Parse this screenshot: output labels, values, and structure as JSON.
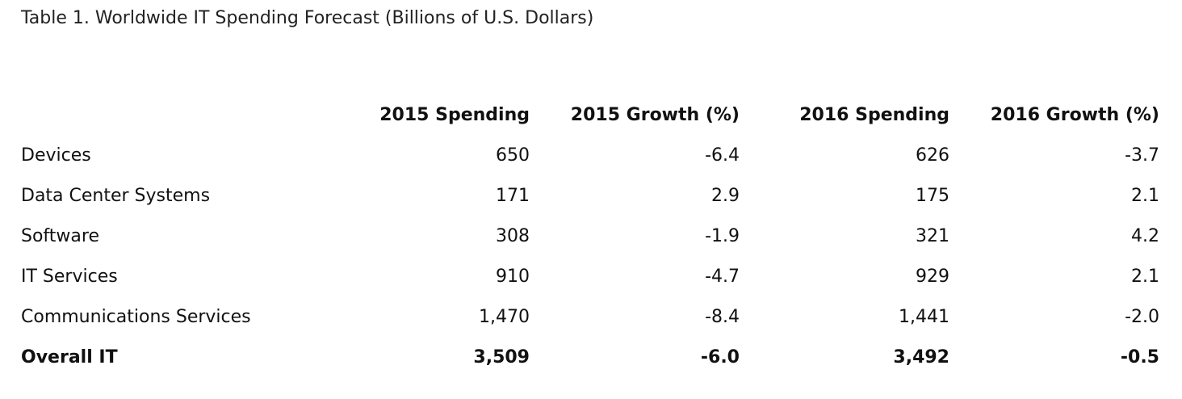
{
  "caption": "Table 1. Worldwide IT Spending Forecast (Billions of U.S. Dollars)",
  "table": {
    "headers": [
      "",
      "2015 Spending",
      "2015 Growth (%)",
      "2016 Spending",
      "2016 Growth (%)"
    ],
    "rows": [
      [
        "Devices",
        "650",
        "-6.4",
        "626",
        "-3.7"
      ],
      [
        "Data Center Systems",
        "171",
        "2.9",
        "175",
        "2.1"
      ],
      [
        "Software",
        "308",
        "-1.9",
        "321",
        "4.2"
      ],
      [
        "IT Services",
        "910",
        "-4.7",
        "929",
        "2.1"
      ],
      [
        "Communications Services",
        "1,470",
        "-8.4",
        "1,441",
        "-2.0"
      ]
    ],
    "total": [
      "Overall IT",
      "3,509",
      "-6.0",
      "3,492",
      "-0.5"
    ]
  }
}
